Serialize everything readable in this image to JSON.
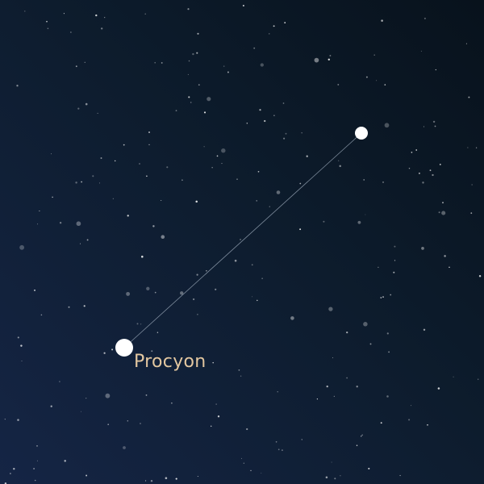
{
  "constellation": {
    "stars": [
      {
        "name": "Procyon",
        "label": "Procyon"
      },
      {
        "name": "",
        "label": ""
      }
    ],
    "colors": {
      "star": "#ffffff",
      "line": "#9aa8b8",
      "label": "#e3c7a0",
      "background_top": "#08121c",
      "background_bottom": "#152545"
    }
  }
}
